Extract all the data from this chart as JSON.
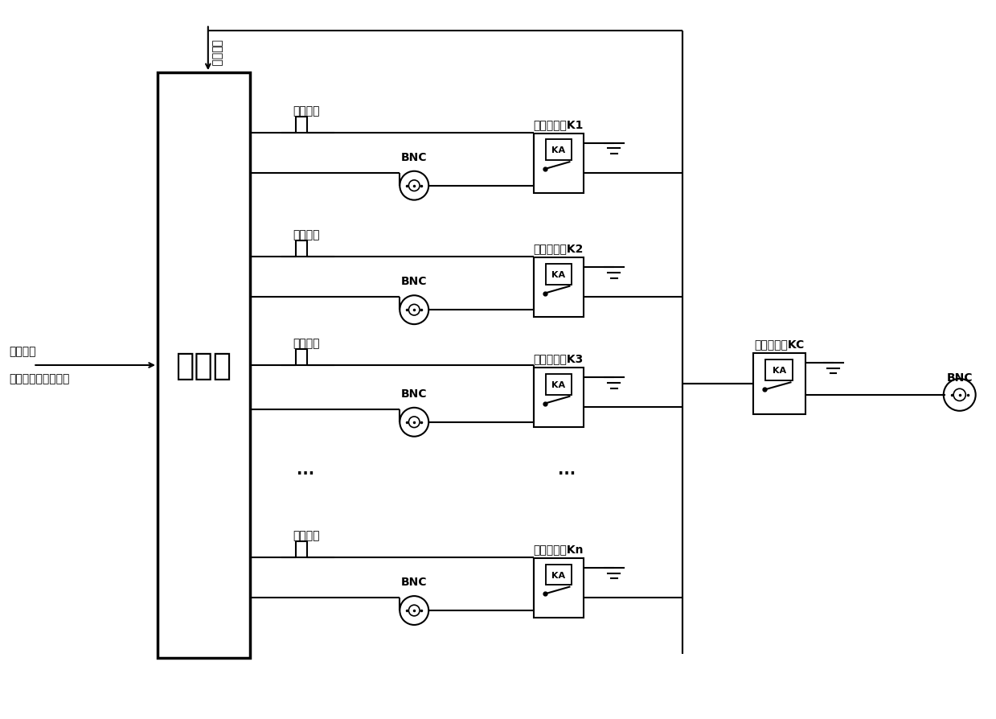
{
  "bg_color": "#ffffff",
  "figsize": [
    12.39,
    8.95
  ],
  "dpi": 100,
  "controller_label": "控制器",
  "input_label1": "通道选择",
  "input_label2": "脉宽宽度及间隔时间",
  "trigger_label": "触发信号",
  "pulse_label": "脉宽可调",
  "BNC_label": "BNC",
  "relay_NO_prefix": "常开继电器K",
  "relay_NC_label": "常闭继电器KC",
  "KA_label": "KA",
  "subscripts": [
    "1",
    "2",
    "3",
    "n"
  ],
  "dots_label": "···",
  "lw": 1.5,
  "lw_thick": 2.5,
  "fs_small": 10,
  "fs_big": 28,
  "fs_dots": 14
}
